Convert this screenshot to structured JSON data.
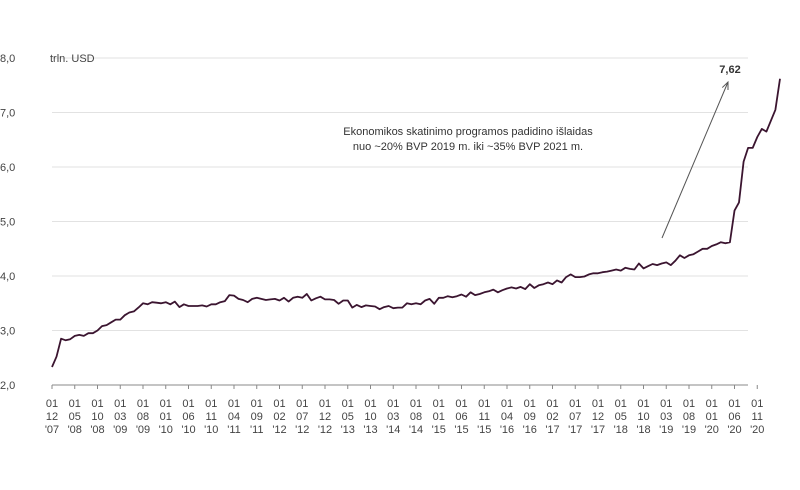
{
  "chart_data": {
    "type": "line",
    "ylabel": "trln. USD",
    "ylim": [
      2.0,
      8.0
    ],
    "y_ticks": [
      "2,0",
      "3,0",
      "4,0",
      "5,0",
      "6,0",
      "7,0",
      "8,0"
    ],
    "y_tick_values": [
      2,
      3,
      4,
      5,
      6,
      7,
      8
    ],
    "grid": "horizontal",
    "x_ticks": [
      {
        "m": "01",
        "d": "12",
        "y": "'07"
      },
      {
        "m": "01",
        "d": "05",
        "y": "'08"
      },
      {
        "m": "01",
        "d": "10",
        "y": "'08"
      },
      {
        "m": "01",
        "d": "03",
        "y": "'09"
      },
      {
        "m": "01",
        "d": "08",
        "y": "'09"
      },
      {
        "m": "01",
        "d": "01",
        "y": "'10"
      },
      {
        "m": "01",
        "d": "06",
        "y": "'10"
      },
      {
        "m": "01",
        "d": "11",
        "y": "'10"
      },
      {
        "m": "01",
        "d": "04",
        "y": "'11"
      },
      {
        "m": "01",
        "d": "09",
        "y": "'11"
      },
      {
        "m": "01",
        "d": "02",
        "y": "'12"
      },
      {
        "m": "01",
        "d": "07",
        "y": "'12"
      },
      {
        "m": "01",
        "d": "12",
        "y": "'12"
      },
      {
        "m": "01",
        "d": "05",
        "y": "'13"
      },
      {
        "m": "01",
        "d": "10",
        "y": "'13"
      },
      {
        "m": "01",
        "d": "03",
        "y": "'14"
      },
      {
        "m": "01",
        "d": "08",
        "y": "'14"
      },
      {
        "m": "01",
        "d": "01",
        "y": "'15"
      },
      {
        "m": "01",
        "d": "06",
        "y": "'15"
      },
      {
        "m": "01",
        "d": "11",
        "y": "'15"
      },
      {
        "m": "01",
        "d": "04",
        "y": "'16"
      },
      {
        "m": "01",
        "d": "09",
        "y": "'16"
      },
      {
        "m": "01",
        "d": "02",
        "y": "'17"
      },
      {
        "m": "01",
        "d": "07",
        "y": "'17"
      },
      {
        "m": "01",
        "d": "12",
        "y": "'17"
      },
      {
        "m": "01",
        "d": "05",
        "y": "'18"
      },
      {
        "m": "01",
        "d": "10",
        "y": "'18"
      },
      {
        "m": "01",
        "d": "03",
        "y": "'19"
      },
      {
        "m": "01",
        "d": "08",
        "y": "'19"
      },
      {
        "m": "01",
        "d": "01",
        "y": "'20"
      },
      {
        "m": "01",
        "d": "06",
        "y": "'20"
      },
      {
        "m": "01",
        "d": "11",
        "y": "'20"
      }
    ],
    "annotation": {
      "line1": "Ekonomikos skatinimo programos padidino išlaidas",
      "line2": "nuo ~20% BVP 2019 m. iki ~35% BVP 2021 m."
    },
    "last_value_label": "7,62",
    "series": [
      {
        "color": "#3b1530",
        "x": [
          "2007-12",
          "2008-01",
          "2008-02",
          "2008-03",
          "2008-04",
          "2008-05",
          "2008-06",
          "2008-07",
          "2008-08",
          "2008-09",
          "2008-10",
          "2008-11",
          "2008-12",
          "2009-01",
          "2009-02",
          "2009-03",
          "2009-04",
          "2009-05",
          "2009-06",
          "2009-07",
          "2009-08",
          "2009-09",
          "2009-10",
          "2009-11",
          "2009-12",
          "2010-01",
          "2010-02",
          "2010-03",
          "2010-04",
          "2010-05",
          "2010-06",
          "2010-07",
          "2010-08",
          "2010-09",
          "2010-10",
          "2010-11",
          "2010-12",
          "2011-01",
          "2011-02",
          "2011-03",
          "2011-04",
          "2011-05",
          "2011-06",
          "2011-07",
          "2011-08",
          "2011-09",
          "2011-10",
          "2011-11",
          "2011-12",
          "2012-01",
          "2012-02",
          "2012-03",
          "2012-04",
          "2012-05",
          "2012-06",
          "2012-07",
          "2012-08",
          "2012-09",
          "2012-10",
          "2012-11",
          "2012-12",
          "2013-01",
          "2013-02",
          "2013-03",
          "2013-04",
          "2013-05",
          "2013-06",
          "2013-07",
          "2013-08",
          "2013-09",
          "2013-10",
          "2013-11",
          "2013-12",
          "2014-01",
          "2014-02",
          "2014-03",
          "2014-04",
          "2014-05",
          "2014-06",
          "2014-07",
          "2014-08",
          "2014-09",
          "2014-10",
          "2014-11",
          "2014-12",
          "2015-01",
          "2015-02",
          "2015-03",
          "2015-04",
          "2015-05",
          "2015-06",
          "2015-07",
          "2015-08",
          "2015-09",
          "2015-10",
          "2015-11",
          "2015-12",
          "2016-01",
          "2016-02",
          "2016-03",
          "2016-04",
          "2016-05",
          "2016-06",
          "2016-07",
          "2016-08",
          "2016-09",
          "2016-10",
          "2016-11",
          "2016-12",
          "2017-01",
          "2017-02",
          "2017-03",
          "2017-04",
          "2017-05",
          "2017-06",
          "2017-07",
          "2017-08",
          "2017-09",
          "2017-10",
          "2017-11",
          "2017-12",
          "2018-01",
          "2018-02",
          "2018-03",
          "2018-04",
          "2018-05",
          "2018-06",
          "2018-07",
          "2018-08",
          "2018-09",
          "2018-10",
          "2018-11",
          "2018-12",
          "2019-01",
          "2019-02",
          "2019-03",
          "2019-04",
          "2019-05",
          "2019-06",
          "2019-07",
          "2019-08",
          "2019-09",
          "2019-10",
          "2019-11",
          "2019-12",
          "2020-01",
          "2020-02",
          "2020-03",
          "2020-04",
          "2020-05",
          "2020-06",
          "2020-07",
          "2020-08",
          "2020-09",
          "2020-10",
          "2020-11",
          "2020-12",
          "2021-01",
          "2021-02",
          "2021-03",
          "2021-04"
        ],
        "values": [
          2.33,
          2.52,
          2.85,
          2.82,
          2.84,
          2.9,
          2.92,
          2.9,
          2.95,
          2.95,
          3.0,
          3.08,
          3.1,
          3.15,
          3.2,
          3.2,
          3.28,
          3.33,
          3.35,
          3.42,
          3.5,
          3.48,
          3.52,
          3.51,
          3.5,
          3.52,
          3.48,
          3.53,
          3.43,
          3.48,
          3.45,
          3.45,
          3.45,
          3.46,
          3.44,
          3.48,
          3.48,
          3.52,
          3.54,
          3.65,
          3.64,
          3.58,
          3.56,
          3.52,
          3.58,
          3.6,
          3.58,
          3.56,
          3.57,
          3.58,
          3.55,
          3.6,
          3.53,
          3.6,
          3.62,
          3.6,
          3.67,
          3.55,
          3.59,
          3.62,
          3.57,
          3.57,
          3.56,
          3.49,
          3.55,
          3.55,
          3.42,
          3.47,
          3.43,
          3.46,
          3.45,
          3.44,
          3.39,
          3.43,
          3.45,
          3.41,
          3.42,
          3.42,
          3.5,
          3.48,
          3.5,
          3.48,
          3.55,
          3.58,
          3.49,
          3.6,
          3.6,
          3.63,
          3.61,
          3.63,
          3.66,
          3.62,
          3.7,
          3.65,
          3.67,
          3.7,
          3.72,
          3.75,
          3.7,
          3.74,
          3.77,
          3.79,
          3.77,
          3.8,
          3.76,
          3.85,
          3.78,
          3.83,
          3.85,
          3.88,
          3.85,
          3.92,
          3.88,
          3.98,
          4.03,
          3.98,
          3.98,
          3.99,
          4.03,
          4.05,
          4.05,
          4.07,
          4.08,
          4.1,
          4.12,
          4.1,
          4.15,
          4.13,
          4.12,
          4.23,
          4.14,
          4.18,
          4.22,
          4.2,
          4.23,
          4.25,
          4.2,
          4.28,
          4.38,
          4.33,
          4.38,
          4.4,
          4.45,
          4.5,
          4.5,
          4.55,
          4.58,
          4.62,
          4.6,
          4.62,
          5.2,
          5.35,
          6.1,
          6.35,
          6.35,
          6.55,
          6.7,
          6.65,
          6.85,
          7.05,
          7.62
        ]
      }
    ]
  }
}
